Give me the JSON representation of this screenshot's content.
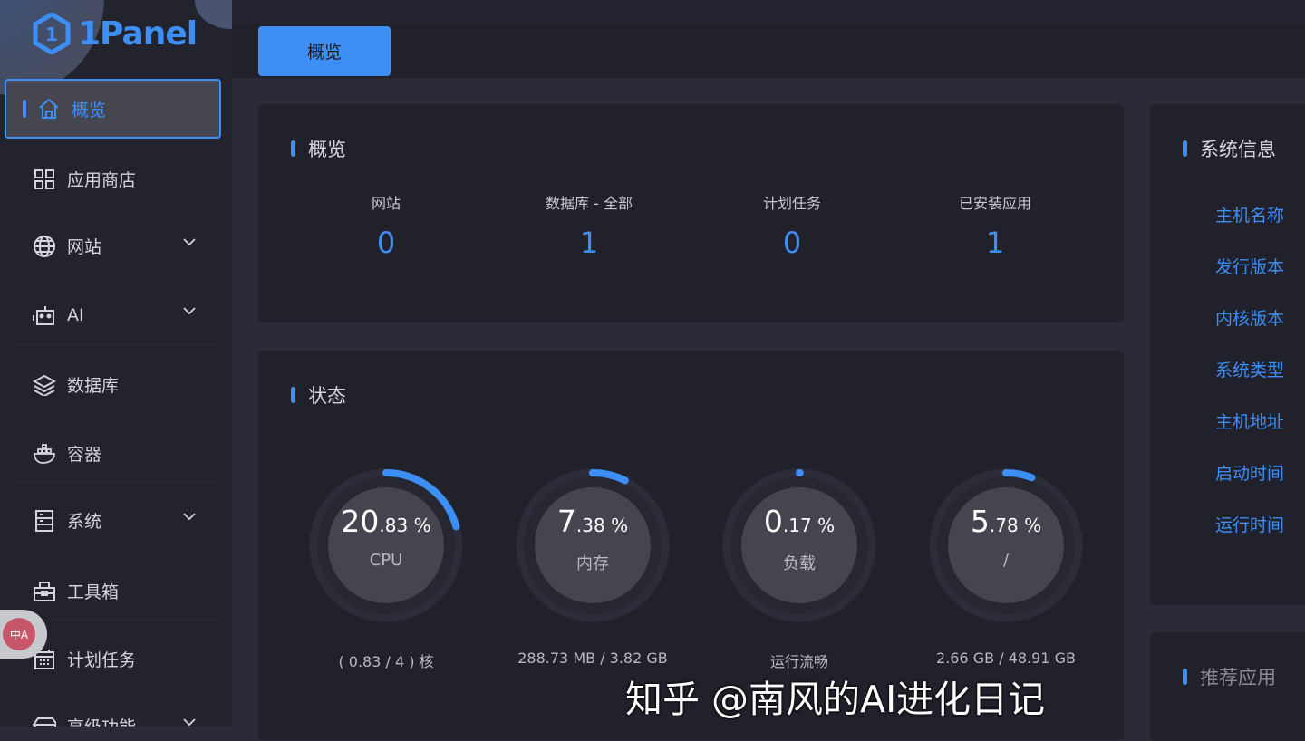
{
  "brand": {
    "name": "1Panel",
    "accent": "#3d8ef5"
  },
  "sidebar": {
    "items": [
      {
        "label": "概览",
        "icon": "home-icon",
        "active": true
      },
      {
        "label": "应用商店",
        "icon": "grid-icon"
      },
      {
        "label": "网站",
        "icon": "globe-icon",
        "expandable": true
      },
      {
        "label": "AI",
        "icon": "robot-icon",
        "expandable": true
      },
      {
        "label": "数据库",
        "icon": "layers-icon"
      },
      {
        "label": "容器",
        "icon": "docker-icon"
      },
      {
        "label": "系统",
        "icon": "server-icon",
        "expandable": true
      },
      {
        "label": "工具箱",
        "icon": "toolbox-icon"
      },
      {
        "label": "计划任务",
        "icon": "calendar-icon"
      },
      {
        "label": "高级功能",
        "icon": "diamond-icon",
        "expandable": true
      }
    ],
    "translate_icon": "中A"
  },
  "tabs": [
    {
      "label": "概览",
      "active": true
    }
  ],
  "overview": {
    "title": "概览",
    "stats": [
      {
        "label": "网站",
        "value": "0"
      },
      {
        "label": "数据库 - 全部",
        "value": "1"
      },
      {
        "label": "计划任务",
        "value": "0"
      },
      {
        "label": "已安装应用",
        "value": "1"
      }
    ]
  },
  "status": {
    "title": "状态",
    "gauges": [
      {
        "int": "20",
        "dec": ".83",
        "unit": " %",
        "percent": 20.83,
        "name": "CPU",
        "sub": "( 0.83 / 4 ) 核"
      },
      {
        "int": "7",
        "dec": ".38",
        "unit": " %",
        "percent": 7.38,
        "name": "内存",
        "sub": "288.73 MB / 3.82 GB"
      },
      {
        "int": "0",
        "dec": ".17",
        "unit": " %",
        "percent": 0.17,
        "name": "负载",
        "sub": "运行流畅"
      },
      {
        "int": "5",
        "dec": ".78",
        "unit": " %",
        "percent": 5.78,
        "name": "/",
        "sub": "2.66 GB / 48.91 GB"
      }
    ]
  },
  "system_info": {
    "title": "系统信息",
    "rows": [
      "主机名称",
      "发行版本",
      "内核版本",
      "系统类型",
      "主机地址",
      "启动时间",
      "运行时间"
    ]
  },
  "recommended": {
    "title": "推荐应用"
  },
  "watermark": "知乎 @南风的AI进化日记"
}
